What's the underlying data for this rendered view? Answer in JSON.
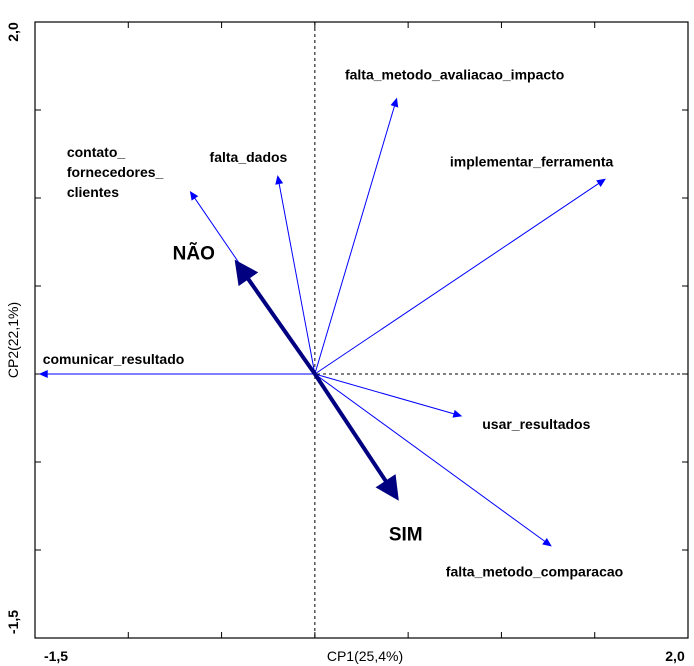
{
  "chart_data": {
    "type": "biplot",
    "xlabel": "CP1(25,4%)",
    "ylabel": "CP2(22,1%)",
    "xlim": [
      -1.5,
      2.0
    ],
    "ylim": [
      -1.5,
      2.0
    ],
    "x_tick_labels": [
      "-1,5",
      "2,0"
    ],
    "y_tick_labels": [
      "2,0",
      "-1,5"
    ],
    "grid": false,
    "variables": [
      {
        "name": "falta_metodo_avaliacao_impacto",
        "x": 0.44,
        "y": 1.57
      },
      {
        "name": "implementar_ferramenta",
        "x": 1.56,
        "y": 1.11
      },
      {
        "name": "falta_dados",
        "x": -0.2,
        "y": 1.13
      },
      {
        "name": "contato_fornecedores_clientes",
        "label_lines": [
          "contato_",
          "fornecedores_",
          "clientes"
        ],
        "x": -0.67,
        "y": 1.04
      },
      {
        "name": "comunicar_resultado",
        "x": -1.48,
        "y": 0.0
      },
      {
        "name": "usar_resultados",
        "x": 0.79,
        "y": -0.24
      },
      {
        "name": "falta_metodo_comparacao",
        "x": 1.27,
        "y": -0.98
      }
    ],
    "groups": [
      {
        "name": "NÃO",
        "x": -0.43,
        "y": 0.65
      },
      {
        "name": "SIM",
        "x": 0.45,
        "y": -0.72
      }
    ],
    "colors": {
      "variable_arrow": "#0000ff",
      "group_arrow": "#000080",
      "axis": "#000000"
    }
  }
}
